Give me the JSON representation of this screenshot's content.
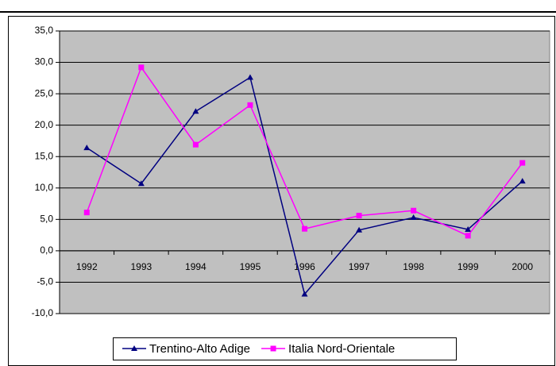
{
  "chart_data": {
    "type": "line",
    "categories": [
      "1992",
      "1993",
      "1994",
      "1995",
      "1996",
      "1997",
      "1998",
      "1999",
      "2000"
    ],
    "series": [
      {
        "name": "Trentino-Alto Adige",
        "color": "#000080",
        "marker": "triangle",
        "values": [
          16.4,
          10.7,
          22.2,
          27.6,
          -6.9,
          3.3,
          5.3,
          3.4,
          11.1
        ]
      },
      {
        "name": "Italia Nord-Orientale",
        "color": "#ff00ff",
        "marker": "square",
        "values": [
          6.1,
          29.2,
          16.9,
          23.2,
          3.5,
          5.6,
          6.4,
          2.4,
          14.0
        ]
      }
    ],
    "ylim": [
      -10,
      35
    ],
    "yticks": [
      {
        "value": -10,
        "label": "-10,0"
      },
      {
        "value": -5,
        "label": "-5,0"
      },
      {
        "value": 0,
        "label": "0,0"
      },
      {
        "value": 5,
        "label": "5,0"
      },
      {
        "value": 10,
        "label": "10,0"
      },
      {
        "value": 15,
        "label": "15,0"
      },
      {
        "value": 20,
        "label": "20,0"
      },
      {
        "value": 25,
        "label": "25,0"
      },
      {
        "value": 30,
        "label": "30,0"
      },
      {
        "value": 35,
        "label": "35,0"
      }
    ],
    "grid": true,
    "legend": "bottom"
  }
}
